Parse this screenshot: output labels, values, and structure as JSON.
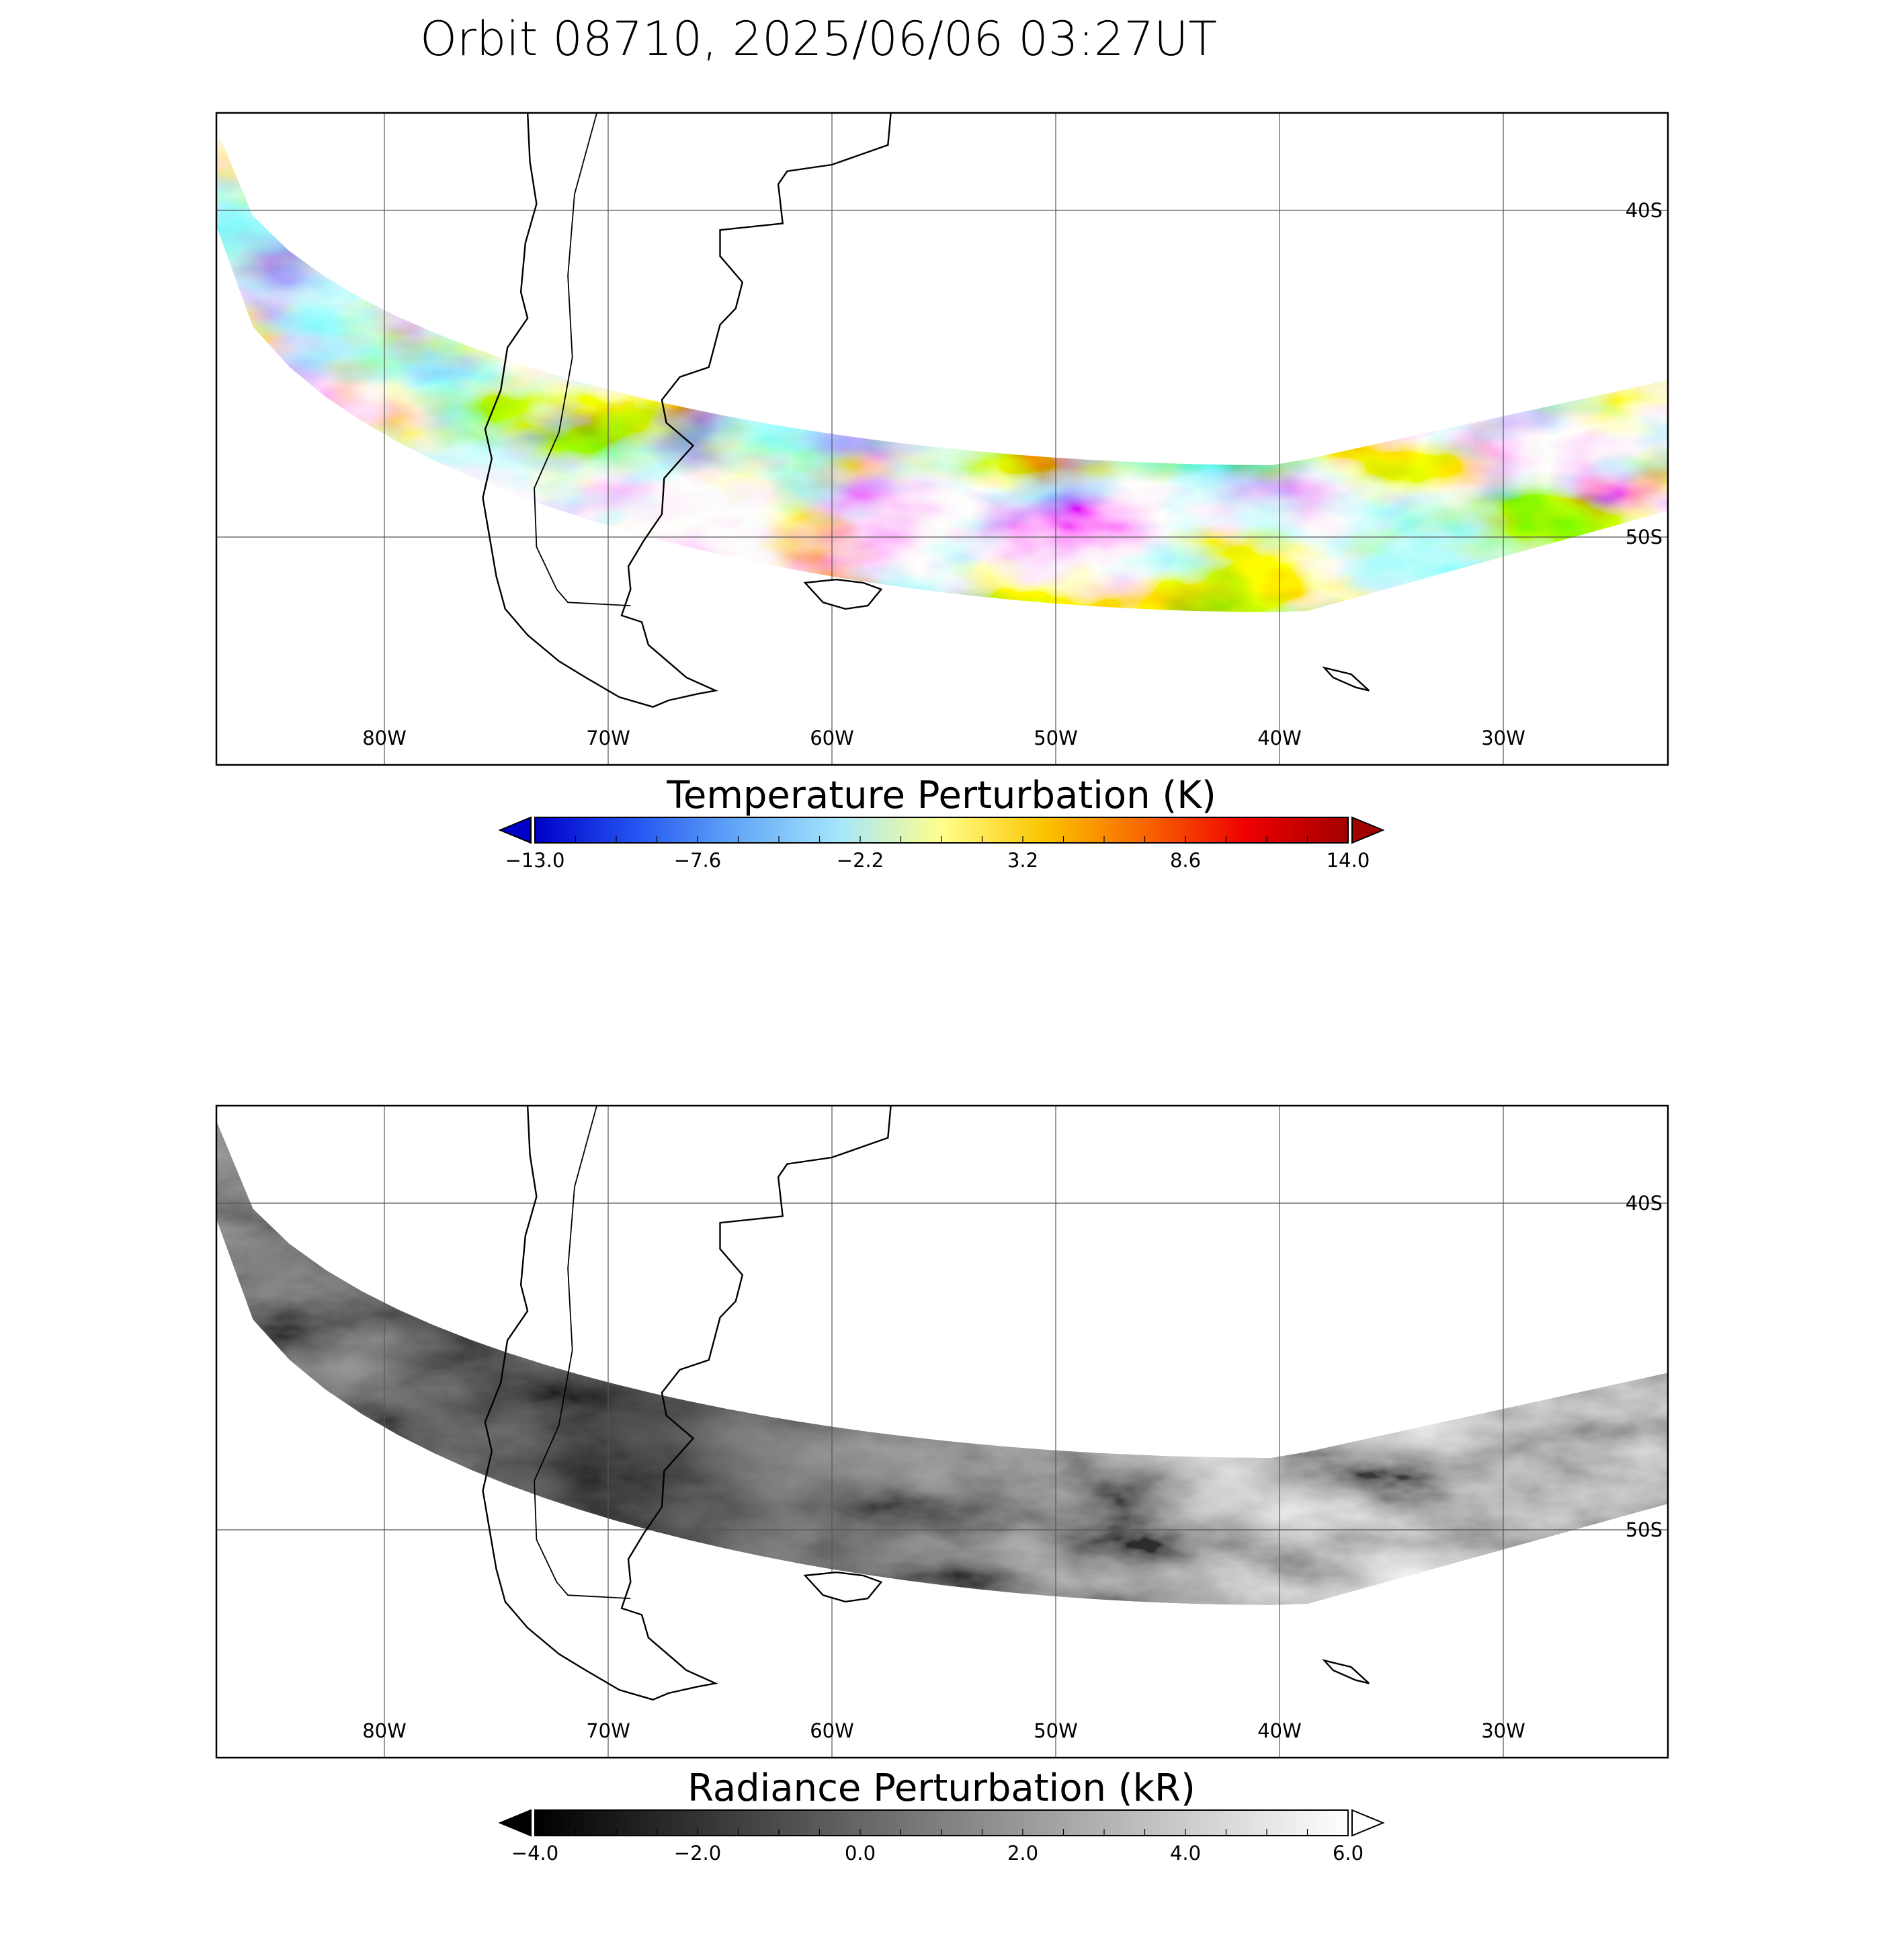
{
  "figure_title": "Orbit 08710, 2025/06/06 03:27UT",
  "colors": {
    "frame": "#000000",
    "grid": "#555555",
    "coast": "#000000"
  },
  "panels": [
    {
      "id": "temperature",
      "colorbar_title": "Temperature Perturbation (K)",
      "colorbar_ticks": [
        "−13.0",
        "−7.6",
        "−2.2",
        "3.2",
        "8.6",
        "14.0"
      ],
      "colorbar_range": [
        -13.0,
        14.0
      ],
      "colormap": [
        "#0000c8",
        "#2456f2",
        "#63a8f8",
        "#a6e6fb",
        "#ffff8c",
        "#fbc500",
        "#f86600",
        "#ee0000",
        "#a30000"
      ],
      "lon_labels": [
        "80W",
        "70W",
        "60W",
        "50W",
        "40W",
        "30W"
      ],
      "lat_labels": [
        "40S",
        "50S"
      ]
    },
    {
      "id": "radiance",
      "colorbar_title": "Radiance Perturbation (kR)",
      "colorbar_ticks": [
        "−4.0",
        "−2.0",
        "0.0",
        "2.0",
        "4.0",
        "6.0"
      ],
      "colorbar_range": [
        -4.0,
        6.0
      ],
      "colormap": [
        "#000000",
        "#ffffff"
      ],
      "lon_labels": [
        "80W",
        "70W",
        "60W",
        "50W",
        "40W",
        "30W"
      ],
      "lat_labels": [
        "40S",
        "50S"
      ]
    }
  ],
  "map_data": {
    "lon_range": [
      -87.5,
      -22.5
    ],
    "lat_range": [
      -57,
      -37
    ],
    "grid_lons": [
      -80,
      -70,
      -60,
      -50,
      -40,
      -30
    ],
    "grid_lats": [
      -40,
      -50
    ]
  }
}
